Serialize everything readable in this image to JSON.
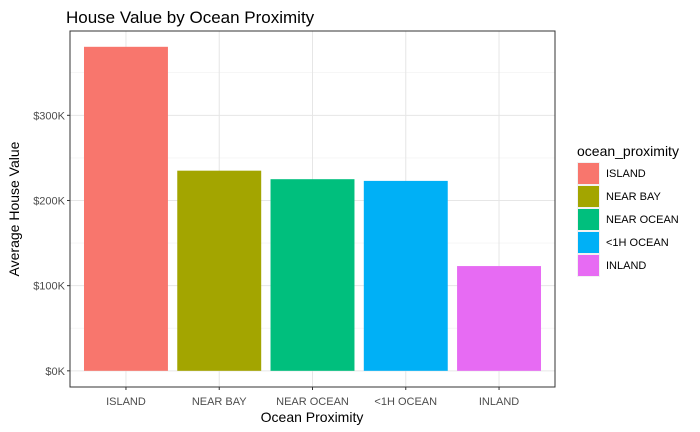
{
  "chart_data": {
    "type": "bar",
    "title": "House Value by Ocean Proximity",
    "xlabel": "Ocean Proximity",
    "ylabel": "Average House Value",
    "categories": [
      "ISLAND",
      "NEAR BAY",
      "NEAR OCEAN",
      "<1H OCEAN",
      "INLAND"
    ],
    "values": [
      380440,
      235000,
      225000,
      223000,
      123000
    ],
    "colors": [
      "#F8766D",
      "#A3A500",
      "#00BF7D",
      "#00B0F6",
      "#E76BF3"
    ],
    "yticks": [
      0,
      100000,
      200000,
      300000
    ],
    "ytick_labels": [
      "$0K",
      "$100K",
      "$200K",
      "$300K"
    ],
    "ylim": [
      -19000,
      399000
    ],
    "grid": true,
    "legend": {
      "title": "ocean_proximity",
      "placement": "right",
      "items": [
        "ISLAND",
        "NEAR BAY",
        "NEAR OCEAN",
        "<1H OCEAN",
        "INLAND"
      ]
    }
  }
}
